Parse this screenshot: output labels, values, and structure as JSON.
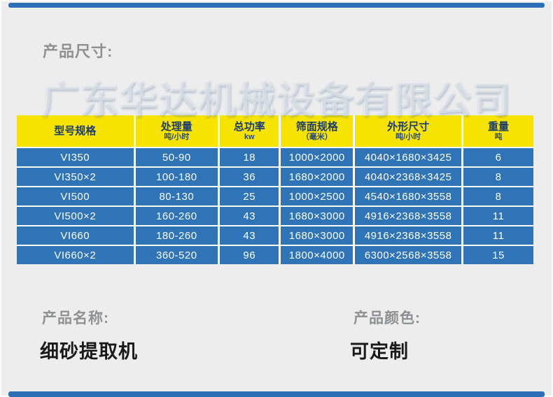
{
  "page": {
    "section_title": "产品尺寸:"
  },
  "table": {
    "headers": [
      {
        "title": "型号规格",
        "subtitle": ""
      },
      {
        "title": "处理量",
        "subtitle": "吨/小时"
      },
      {
        "title": "总功率",
        "subtitle": "kw"
      },
      {
        "title": "筛面规格",
        "subtitle": "（毫米）"
      },
      {
        "title": "外形尺寸",
        "subtitle": "吨/小时"
      },
      {
        "title": "重量",
        "subtitle": "吨"
      }
    ],
    "rows": [
      [
        "VI350",
        "50-90",
        "18",
        "1000×2000",
        "4040×1680×3425",
        "6"
      ],
      [
        "VI350×2",
        "100-180",
        "36",
        "1680×2000",
        "4040×2368×3425",
        "8"
      ],
      [
        "VI500",
        "80-130",
        "25",
        "1000×2500",
        "4540×1680×3558",
        "8"
      ],
      [
        "VI500×2",
        "160-260",
        "43",
        "1680×3000",
        "4916×2368×3558",
        "11"
      ],
      [
        "VI660",
        "180-260",
        "43",
        "1680×3000",
        "4916×2368×3558",
        "11"
      ],
      [
        "VI660×2",
        "360-520",
        "96",
        "1800×4000",
        "6300×2568×3558",
        "15"
      ]
    ]
  },
  "watermark": "广东华达机械设备有限公司",
  "footer": {
    "name_label": "产品名称:",
    "name_value": "细砂提取机",
    "color_label": "产品颜色:",
    "color_value": "可定制"
  },
  "colors": {
    "background": "#EDEDEE",
    "header_yellow": "#F6E400",
    "header_text": "#1A3A70",
    "row_blue": "#2E74B6",
    "row_text": "#FFFFFF",
    "accent_bar": "#2D6FB6",
    "label_gray": "#8F9091",
    "value_black": "#1A1A1A"
  }
}
